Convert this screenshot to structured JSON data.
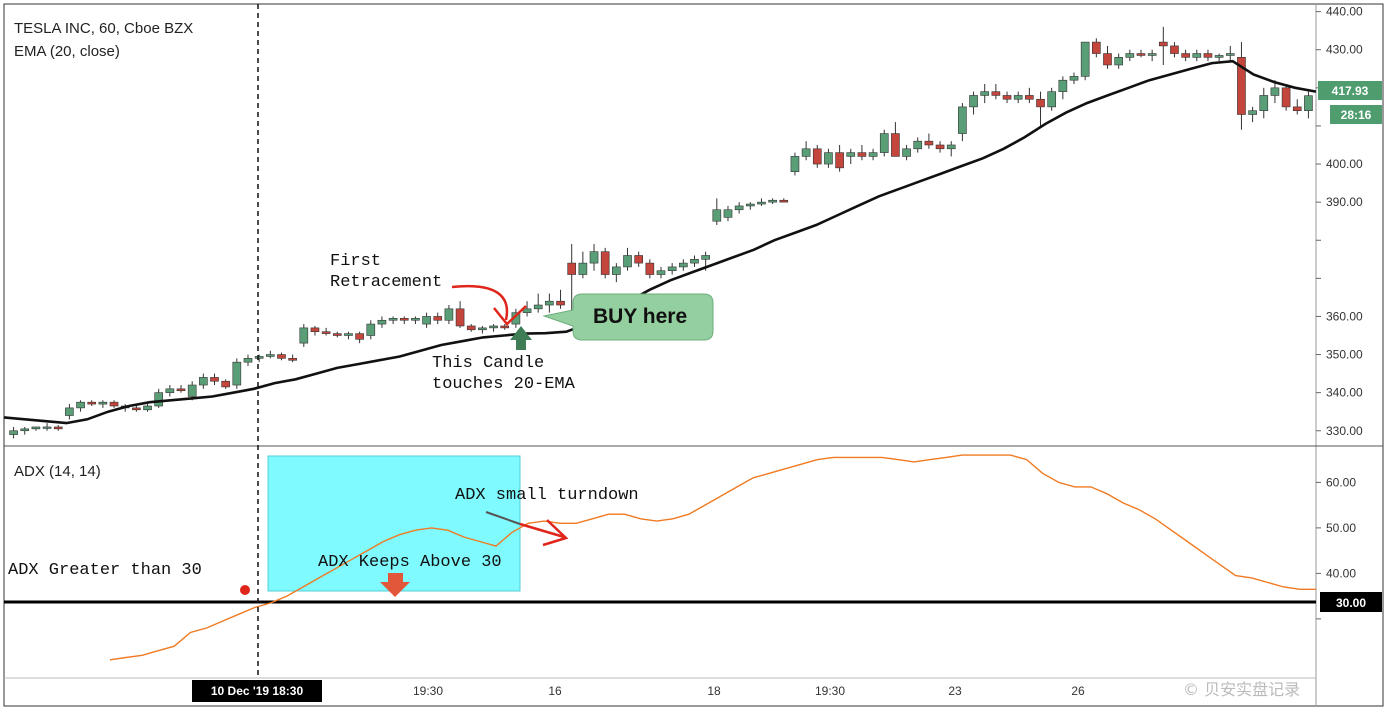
{
  "header": {
    "symbol_line": "TESLA INC, 60, Cboe BZX",
    "ema_line": "EMA (20, close)",
    "adx_line": "ADX (14, 14)"
  },
  "price_tags": {
    "last_price": "417.93",
    "countdown": "28:16",
    "adx_level": "30.00"
  },
  "annotations": {
    "first_retracement_1": "First",
    "first_retracement_2": "Retracement",
    "touch_1": "This Candle",
    "touch_2": "touches 20-EMA",
    "buy": "BUY here",
    "adx_gt_30": "ADX Greater than 30",
    "adx_keeps_above": "ADX Keeps Above 30",
    "adx_turndown": "ADX small turndown",
    "watermark": "© 贝安实盘记录"
  },
  "colors": {
    "up": "#5a9e78",
    "down": "#c4453c",
    "ema": "#111111",
    "adx": "#f07a22",
    "highlight": "#7ffaff",
    "annotation_red": "#e0251b",
    "buy_bubble": "#93cf9f",
    "tag_green": "#4f9d6f"
  },
  "chart_data": [
    {
      "type": "candlestick",
      "title": "TESLA INC, 60, Cboe BZX",
      "ylim": [
        326,
        442
      ],
      "y_ticks": [
        330,
        340,
        350,
        360,
        370,
        380,
        390,
        400,
        410,
        420,
        430,
        440
      ],
      "y_tick_labels": [
        "330.00",
        "340.00",
        "350.00",
        "360.00",
        "",
        "",
        "390.00",
        "400.00",
        "",
        "",
        "430.00",
        "440.00"
      ],
      "x_ticks": [
        "10 Dec '19  18:30",
        "19:30",
        "16",
        "18",
        "19:30",
        "23",
        "26"
      ],
      "candles": [
        [
          329,
          331,
          328,
          330
        ],
        [
          330,
          331,
          329,
          330.5
        ],
        [
          330.5,
          331,
          330,
          331
        ],
        [
          331,
          332,
          330,
          331
        ],
        [
          331,
          331.5,
          330,
          330.5
        ],
        [
          334,
          337,
          333,
          336
        ],
        [
          336,
          338,
          335,
          337.5
        ],
        [
          337.5,
          338,
          336.5,
          337
        ],
        [
          337,
          338,
          336,
          337.5
        ],
        [
          337.5,
          338,
          336,
          336.5
        ],
        [
          336.5,
          337,
          335,
          336
        ],
        [
          336,
          337,
          335,
          335.5
        ],
        [
          335.5,
          337,
          335,
          336.5
        ],
        [
          336.5,
          341,
          336,
          340
        ],
        [
          340,
          342,
          339,
          341
        ],
        [
          341,
          342,
          340,
          340.5
        ],
        [
          339,
          343,
          338,
          342
        ],
        [
          342,
          345,
          341,
          344
        ],
        [
          344,
          345,
          342,
          343
        ],
        [
          343,
          343.5,
          341,
          341.5
        ],
        [
          342,
          349,
          341,
          348
        ],
        [
          348,
          350,
          347,
          349
        ],
        [
          349,
          350,
          348,
          349.5
        ],
        [
          349.5,
          351,
          349,
          350
        ],
        [
          350,
          350.5,
          348.5,
          349
        ],
        [
          349,
          350,
          348,
          348.5
        ],
        [
          353,
          358,
          352,
          357
        ],
        [
          357,
          357.5,
          355,
          356
        ],
        [
          356,
          357,
          355,
          355.5
        ],
        [
          355.5,
          356,
          354.5,
          355
        ],
        [
          355,
          356,
          354,
          355.5
        ],
        [
          355.5,
          356,
          353,
          354
        ],
        [
          355,
          359,
          354,
          358
        ],
        [
          358,
          360,
          357,
          359
        ],
        [
          359,
          360,
          358,
          359.5
        ],
        [
          359.5,
          360,
          358,
          359
        ],
        [
          359,
          360,
          358,
          359.5
        ],
        [
          358,
          361,
          357,
          360
        ],
        [
          360,
          361,
          358,
          359
        ],
        [
          359,
          363,
          358,
          362
        ],
        [
          362,
          364,
          357,
          357.5
        ],
        [
          357.5,
          358,
          356,
          356.5
        ],
        [
          356.5,
          357.5,
          355.5,
          357
        ],
        [
          357,
          358,
          356,
          357.5
        ],
        [
          357.5,
          358,
          356.5,
          357
        ],
        [
          358,
          362,
          357,
          361
        ],
        [
          361,
          364,
          360,
          362
        ],
        [
          362,
          366,
          361,
          363
        ],
        [
          363,
          366,
          361,
          364
        ],
        [
          364,
          367,
          362,
          363
        ],
        [
          374,
          379,
          361,
          371
        ],
        [
          371,
          377,
          370,
          374
        ],
        [
          374,
          379,
          372,
          377
        ],
        [
          377,
          378,
          370,
          371
        ],
        [
          371,
          374,
          369,
          373
        ],
        [
          373,
          378,
          372,
          376
        ],
        [
          376,
          377,
          373,
          374
        ],
        [
          374,
          375,
          370,
          371
        ],
        [
          371,
          373,
          370,
          372
        ],
        [
          372,
          374,
          371,
          373
        ],
        [
          373,
          375,
          372,
          374
        ],
        [
          374,
          376,
          373,
          375
        ],
        [
          375,
          377,
          372,
          376
        ],
        [
          385,
          391,
          384,
          388
        ],
        [
          386,
          389,
          385,
          388
        ],
        [
          388,
          390,
          387,
          389
        ],
        [
          389,
          390,
          388,
          389.5
        ],
        [
          389.5,
          391,
          389,
          390
        ],
        [
          390,
          391,
          389.5,
          390.5
        ],
        [
          390.5,
          391,
          390,
          390
        ],
        [
          398,
          403,
          397,
          402
        ],
        [
          402,
          406,
          401,
          404
        ],
        [
          404,
          405,
          399,
          400
        ],
        [
          400,
          404,
          399,
          403
        ],
        [
          403,
          405,
          398,
          399
        ],
        [
          402,
          404,
          400,
          403
        ],
        [
          403,
          405,
          401,
          402
        ],
        [
          402,
          404,
          401,
          403
        ],
        [
          403,
          409,
          402,
          408
        ],
        [
          408,
          411,
          402,
          402
        ],
        [
          402,
          405,
          401,
          404
        ],
        [
          404,
          407,
          403,
          406
        ],
        [
          406,
          408,
          404,
          405
        ],
        [
          405,
          406,
          403,
          404
        ],
        [
          404,
          406,
          402,
          405
        ],
        [
          408,
          416,
          406,
          415
        ],
        [
          415,
          419,
          413,
          418
        ],
        [
          418,
          421,
          416,
          419
        ],
        [
          419,
          421,
          417,
          418
        ],
        [
          418,
          419,
          416,
          417
        ],
        [
          417,
          419,
          416,
          418
        ],
        [
          418,
          420,
          416,
          417
        ],
        [
          417,
          419,
          410,
          415
        ],
        [
          415,
          420,
          414,
          419
        ],
        [
          419,
          423,
          417,
          422
        ],
        [
          422,
          424,
          421,
          423
        ],
        [
          423,
          432,
          422,
          432
        ],
        [
          432,
          433,
          428,
          429
        ],
        [
          429,
          431,
          425,
          426
        ],
        [
          426,
          429,
          425,
          428
        ],
        [
          428,
          430,
          427,
          429
        ],
        [
          429,
          430,
          428,
          428.5
        ],
        [
          428.5,
          430,
          427,
          429
        ],
        [
          432,
          436,
          426,
          431
        ],
        [
          431,
          432,
          428,
          429
        ],
        [
          429,
          430,
          427,
          428
        ],
        [
          428,
          430,
          427,
          429
        ],
        [
          429,
          430,
          427,
          428
        ],
        [
          428,
          429,
          427,
          428.5
        ],
        [
          428.5,
          431,
          427,
          429
        ],
        [
          428,
          432,
          409,
          413
        ],
        [
          413,
          415,
          411,
          414
        ],
        [
          414,
          420,
          412,
          418
        ],
        [
          418,
          422,
          416,
          420
        ],
        [
          420,
          421,
          414,
          415
        ],
        [
          415,
          417,
          413,
          414
        ],
        [
          414,
          419,
          412,
          417.93
        ]
      ]
    },
    {
      "type": "line",
      "title": "EMA (20, close)",
      "values": [
        333.5,
        333,
        332.5,
        332,
        333,
        335,
        336.5,
        337.5,
        338,
        338.5,
        339,
        340,
        341,
        342.5,
        343.5,
        345,
        346.5,
        347.5,
        348.5,
        349.5,
        351,
        352.5,
        353.5,
        354.5,
        355,
        355.5,
        355.6,
        356,
        358,
        361,
        364,
        367,
        369.5,
        371.5,
        373.5,
        375.5,
        377.5,
        380,
        382,
        384,
        386.5,
        389,
        391.5,
        393.5,
        395.5,
        397.5,
        399.5,
        401.5,
        404,
        407,
        410.5,
        413.5,
        416,
        418,
        420,
        422,
        423.5,
        425,
        426.5,
        427,
        423.5,
        421.5,
        420,
        419
      ]
    },
    {
      "type": "line",
      "title": "ADX (14, 14)",
      "ylim": [
        17,
        68
      ],
      "y_ticks": [
        30,
        40,
        50,
        60
      ],
      "y_tick_labels": [
        "",
        "40.00",
        "50.00",
        "60.00"
      ],
      "threshold": 30,
      "values": [
        21,
        21.5,
        22,
        23,
        24,
        27,
        28,
        29.5,
        31,
        32.5,
        33.5,
        35,
        37,
        39,
        41,
        43,
        45,
        47,
        48.5,
        49.5,
        50,
        49.5,
        48,
        47,
        46,
        49,
        51,
        51.5,
        51,
        51,
        52,
        53,
        53,
        52,
        51.5,
        52,
        53,
        55,
        57,
        59,
        61,
        62,
        63,
        64,
        65,
        65.5,
        65.5,
        65.5,
        65.5,
        65,
        64.5,
        65,
        65.5,
        66,
        66,
        66,
        66,
        65,
        62,
        60,
        59,
        59,
        57.5,
        55.5,
        54,
        52,
        49.5,
        47,
        44.5,
        42,
        39.5,
        39,
        38,
        37,
        36.5,
        36.5
      ]
    }
  ]
}
